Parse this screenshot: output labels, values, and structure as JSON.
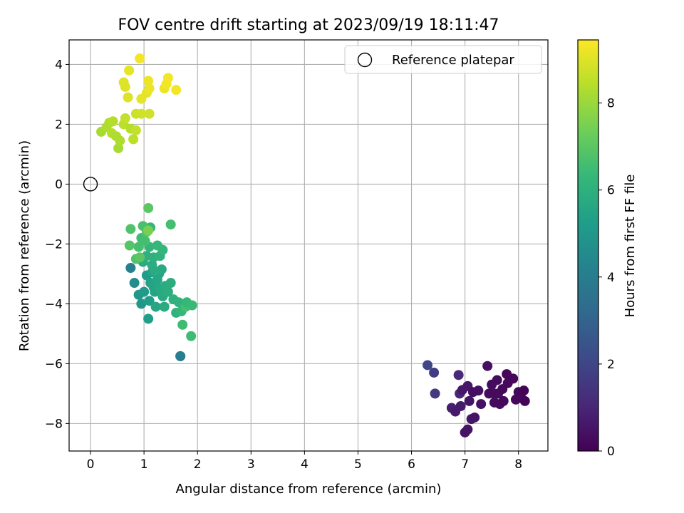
{
  "chart_data": {
    "type": "scatter",
    "title": "FOV centre drift starting at 2023/09/19 18:11:47",
    "xlabel": "Angular distance from reference (arcmin)",
    "ylabel": "Rotation from reference (arcmin)",
    "xlim": [
      -0.4,
      8.55
    ],
    "ylim": [
      -8.92,
      4.82
    ],
    "xticks": [
      0,
      1,
      2,
      3,
      4,
      5,
      6,
      7,
      8
    ],
    "yticks": [
      4,
      2,
      0,
      -2,
      -4,
      -6,
      -8
    ],
    "grid": true,
    "legend": {
      "placement": "top-right",
      "entries": [
        "Reference platepar"
      ]
    },
    "reference_point": {
      "x": 0.0,
      "y": 0.0
    },
    "colorbar": {
      "label": "Hours from first FF file",
      "min": 0,
      "max": 9.45,
      "ticks": [
        0,
        2,
        4,
        6,
        8
      ],
      "colormap": "viridis"
    },
    "colormap_stops": [
      "#440154",
      "#482878",
      "#3e4989",
      "#31688e",
      "#26828e",
      "#1f9e89",
      "#35b779",
      "#6ece58",
      "#b5de2b",
      "#fde725"
    ],
    "points": [
      {
        "x": 6.3,
        "y": -6.05,
        "t": 2.0
      },
      {
        "x": 6.42,
        "y": -6.3,
        "t": 1.7
      },
      {
        "x": 6.44,
        "y": -7.0,
        "t": 1.6
      },
      {
        "x": 6.75,
        "y": -7.48,
        "t": 0.8
      },
      {
        "x": 6.82,
        "y": -7.6,
        "t": 0.7
      },
      {
        "x": 6.9,
        "y": -7.0,
        "t": 1.0
      },
      {
        "x": 6.88,
        "y": -6.38,
        "t": 1.1
      },
      {
        "x": 6.92,
        "y": -7.42,
        "t": 0.7
      },
      {
        "x": 6.95,
        "y": -6.88,
        "t": 0.6
      },
      {
        "x": 7.0,
        "y": -8.3,
        "t": 0.5
      },
      {
        "x": 7.05,
        "y": -8.2,
        "t": 0.5
      },
      {
        "x": 7.05,
        "y": -6.75,
        "t": 0.6
      },
      {
        "x": 7.08,
        "y": -7.25,
        "t": 0.5
      },
      {
        "x": 7.12,
        "y": -7.85,
        "t": 0.6
      },
      {
        "x": 7.15,
        "y": -6.95,
        "t": 0.4
      },
      {
        "x": 7.18,
        "y": -7.8,
        "t": 0.5
      },
      {
        "x": 7.25,
        "y": -6.9,
        "t": 0.4
      },
      {
        "x": 7.3,
        "y": -7.35,
        "t": 0.4
      },
      {
        "x": 7.42,
        "y": -6.08,
        "t": 0.4
      },
      {
        "x": 7.45,
        "y": -7.0,
        "t": 0.3
      },
      {
        "x": 7.5,
        "y": -6.7,
        "t": 0.3
      },
      {
        "x": 7.55,
        "y": -7.3,
        "t": 0.3
      },
      {
        "x": 7.6,
        "y": -6.55,
        "t": 0.3
      },
      {
        "x": 7.62,
        "y": -7.0,
        "t": 0.3
      },
      {
        "x": 7.65,
        "y": -7.35,
        "t": 0.3
      },
      {
        "x": 7.7,
        "y": -6.85,
        "t": 0.2
      },
      {
        "x": 7.72,
        "y": -7.25,
        "t": 0.2
      },
      {
        "x": 7.78,
        "y": -6.35,
        "t": 0.2
      },
      {
        "x": 7.8,
        "y": -6.65,
        "t": 0.2
      },
      {
        "x": 7.9,
        "y": -6.5,
        "t": 0.2
      },
      {
        "x": 7.95,
        "y": -7.2,
        "t": 0.2
      },
      {
        "x": 8.0,
        "y": -6.95,
        "t": 0.2
      },
      {
        "x": 8.05,
        "y": -7.15,
        "t": 0.2
      },
      {
        "x": 8.1,
        "y": -6.9,
        "t": 0.1
      },
      {
        "x": 8.12,
        "y": -7.25,
        "t": 0.1
      },
      {
        "x": 7.55,
        "y": -7.0,
        "t": 0.3
      },
      {
        "x": 1.68,
        "y": -5.75,
        "t": 4.2
      },
      {
        "x": 1.68,
        "y": -5.75,
        "t": 4.0
      },
      {
        "x": 0.75,
        "y": -2.8,
        "t": 4.1
      },
      {
        "x": 0.82,
        "y": -3.3,
        "t": 4.6
      },
      {
        "x": 0.9,
        "y": -3.7,
        "t": 5.0
      },
      {
        "x": 0.95,
        "y": -4.0,
        "t": 5.0
      },
      {
        "x": 1.0,
        "y": -3.6,
        "t": 5.1
      },
      {
        "x": 1.05,
        "y": -3.05,
        "t": 5.2
      },
      {
        "x": 1.08,
        "y": -4.5,
        "t": 5.3
      },
      {
        "x": 1.1,
        "y": -3.9,
        "t": 5.3
      },
      {
        "x": 1.12,
        "y": -3.3,
        "t": 5.4
      },
      {
        "x": 1.15,
        "y": -2.95,
        "t": 5.4
      },
      {
        "x": 1.18,
        "y": -3.45,
        "t": 5.5
      },
      {
        "x": 1.2,
        "y": -3.6,
        "t": 5.5
      },
      {
        "x": 1.22,
        "y": -4.1,
        "t": 5.6
      },
      {
        "x": 1.25,
        "y": -3.2,
        "t": 5.6
      },
      {
        "x": 1.28,
        "y": -3.0,
        "t": 5.6
      },
      {
        "x": 1.3,
        "y": -3.5,
        "t": 5.7
      },
      {
        "x": 1.33,
        "y": -2.85,
        "t": 5.7
      },
      {
        "x": 1.35,
        "y": -3.75,
        "t": 5.7
      },
      {
        "x": 1.38,
        "y": -4.1,
        "t": 5.8
      },
      {
        "x": 1.4,
        "y": -3.4,
        "t": 5.8
      },
      {
        "x": 1.45,
        "y": -3.6,
        "t": 5.9
      },
      {
        "x": 1.5,
        "y": -3.3,
        "t": 5.9
      },
      {
        "x": 1.55,
        "y": -3.85,
        "t": 6.0
      },
      {
        "x": 1.6,
        "y": -4.3,
        "t": 6.1
      },
      {
        "x": 1.65,
        "y": -3.95,
        "t": 6.1
      },
      {
        "x": 1.7,
        "y": -4.25,
        "t": 6.3
      },
      {
        "x": 1.72,
        "y": -4.7,
        "t": 6.5
      },
      {
        "x": 1.78,
        "y": -4.1,
        "t": 6.6
      },
      {
        "x": 1.8,
        "y": -3.95,
        "t": 6.3
      },
      {
        "x": 1.88,
        "y": -5.08,
        "t": 6.5
      },
      {
        "x": 1.9,
        "y": -4.05,
        "t": 6.4
      },
      {
        "x": 0.98,
        "y": -2.6,
        "t": 5.8
      },
      {
        "x": 1.05,
        "y": -2.4,
        "t": 6.0
      },
      {
        "x": 1.1,
        "y": -2.1,
        "t": 6.2
      },
      {
        "x": 1.12,
        "y": -1.45,
        "t": 6.3
      },
      {
        "x": 1.15,
        "y": -2.7,
        "t": 5.9
      },
      {
        "x": 1.18,
        "y": -2.45,
        "t": 6.0
      },
      {
        "x": 1.2,
        "y": -2.9,
        "t": 5.8
      },
      {
        "x": 1.3,
        "y": -2.4,
        "t": 6.1
      },
      {
        "x": 1.35,
        "y": -2.2,
        "t": 6.2
      },
      {
        "x": 1.25,
        "y": -2.05,
        "t": 6.3
      },
      {
        "x": 0.95,
        "y": -1.8,
        "t": 6.5
      },
      {
        "x": 0.98,
        "y": -1.4,
        "t": 6.7
      },
      {
        "x": 0.9,
        "y": -2.1,
        "t": 6.6
      },
      {
        "x": 0.85,
        "y": -2.5,
        "t": 6.8
      },
      {
        "x": 1.02,
        "y": -1.9,
        "t": 6.6
      },
      {
        "x": 1.05,
        "y": -1.6,
        "t": 6.9
      },
      {
        "x": 1.08,
        "y": -0.8,
        "t": 7.0
      },
      {
        "x": 0.75,
        "y": -1.5,
        "t": 6.8
      },
      {
        "x": 0.73,
        "y": -2.05,
        "t": 6.9
      },
      {
        "x": 1.5,
        "y": -1.35,
        "t": 6.6
      },
      {
        "x": 1.08,
        "y": -1.55,
        "t": 7.5
      },
      {
        "x": 0.92,
        "y": -2.45,
        "t": 7.0
      },
      {
        "x": 0.2,
        "y": 1.75,
        "t": 8.2
      },
      {
        "x": 0.3,
        "y": 1.9,
        "t": 8.3
      },
      {
        "x": 0.35,
        "y": 2.05,
        "t": 8.3
      },
      {
        "x": 0.4,
        "y": 1.7,
        "t": 8.4
      },
      {
        "x": 0.42,
        "y": 2.1,
        "t": 8.4
      },
      {
        "x": 0.48,
        "y": 1.6,
        "t": 8.3
      },
      {
        "x": 0.52,
        "y": 1.2,
        "t": 8.2
      },
      {
        "x": 0.55,
        "y": 1.45,
        "t": 8.3
      },
      {
        "x": 0.62,
        "y": 2.0,
        "t": 8.5
      },
      {
        "x": 0.65,
        "y": 2.2,
        "t": 8.6
      },
      {
        "x": 0.75,
        "y": 1.85,
        "t": 8.4
      },
      {
        "x": 0.8,
        "y": 1.5,
        "t": 8.5
      },
      {
        "x": 0.85,
        "y": 1.8,
        "t": 8.6
      },
      {
        "x": 0.85,
        "y": 2.35,
        "t": 8.7
      },
      {
        "x": 0.95,
        "y": 2.35,
        "t": 8.8
      },
      {
        "x": 1.1,
        "y": 2.35,
        "t": 8.8
      },
      {
        "x": 0.62,
        "y": 3.4,
        "t": 9.0
      },
      {
        "x": 0.65,
        "y": 3.25,
        "t": 9.0
      },
      {
        "x": 0.7,
        "y": 2.9,
        "t": 9.0
      },
      {
        "x": 0.72,
        "y": 3.8,
        "t": 9.1
      },
      {
        "x": 0.92,
        "y": 4.2,
        "t": 9.3
      },
      {
        "x": 0.95,
        "y": 2.85,
        "t": 9.1
      },
      {
        "x": 1.05,
        "y": 3.05,
        "t": 9.1
      },
      {
        "x": 1.08,
        "y": 3.45,
        "t": 9.2
      },
      {
        "x": 1.1,
        "y": 3.2,
        "t": 9.2
      },
      {
        "x": 1.38,
        "y": 3.2,
        "t": 9.2
      },
      {
        "x": 1.42,
        "y": 3.35,
        "t": 9.3
      },
      {
        "x": 1.45,
        "y": 3.55,
        "t": 9.3
      },
      {
        "x": 1.6,
        "y": 3.15,
        "t": 9.3
      }
    ]
  }
}
